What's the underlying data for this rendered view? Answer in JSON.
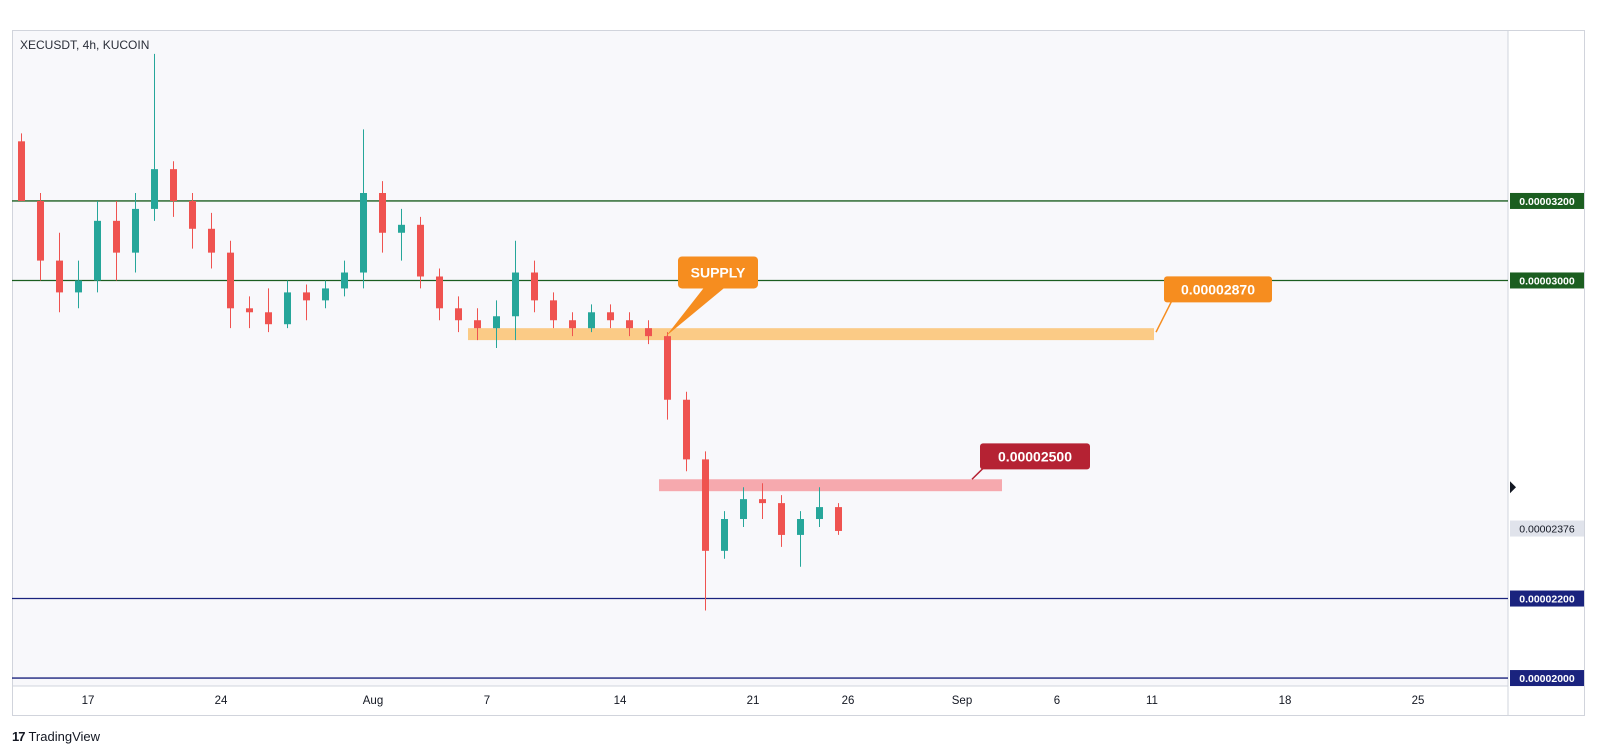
{
  "header": {
    "symbol_line": "XECUSDT, 4h, KUCOIN"
  },
  "footer": {
    "brand": "TradingView",
    "brand_mark": "17"
  },
  "colors": {
    "resistance": "#1b5e20",
    "support": "#1a237e",
    "supply_zone": "#fbc880",
    "supply_label": "#f68d1f",
    "demand_zone": "#f6a4aa",
    "demand_label": "#b52233",
    "candle_up": "#26a69a",
    "candle_down": "#ef5350"
  },
  "chart_data": {
    "type": "candlestick",
    "title": "XECUSDT, 4h, KUCOIN",
    "x_ticks": [
      "17",
      "24",
      "Aug",
      "7",
      "14",
      "21",
      "26",
      "Sep",
      "6",
      "11",
      "18",
      "25"
    ],
    "y_range": [
      1.98e-05,
      3.63e-05
    ],
    "levels": [
      {
        "value": 3.2e-05,
        "label": "0.00003200",
        "style": "resistance"
      },
      {
        "value": 3e-05,
        "label": "0.00003000",
        "style": "resistance"
      },
      {
        "value": 2.2e-05,
        "label": "0.00002200",
        "style": "support"
      },
      {
        "value": 2e-05,
        "label": "0.00002000",
        "style": "support"
      }
    ],
    "current_price": {
      "value": 2.376e-05,
      "label": "0.00002376"
    },
    "zones": [
      {
        "name": "supply",
        "from": 2.85e-05,
        "to": 2.88e-05,
        "label": "0.00002870",
        "callout": "SUPPLY"
      },
      {
        "name": "demand",
        "from": 2.47e-05,
        "to": 2.5e-05,
        "label": "0.00002500"
      }
    ],
    "candles": [
      {
        "d": "Jul 13",
        "o": 3.35e-05,
        "h": 3.37e-05,
        "l": 3.2e-05,
        "c": 3.2e-05
      },
      {
        "d": "Jul 14",
        "o": 3.2e-05,
        "h": 3.22e-05,
        "l": 3e-05,
        "c": 3.05e-05
      },
      {
        "d": "Jul 15",
        "o": 3.05e-05,
        "h": 3.12e-05,
        "l": 2.92e-05,
        "c": 2.97e-05
      },
      {
        "d": "Jul 16",
        "o": 2.97e-05,
        "h": 3.05e-05,
        "l": 2.93e-05,
        "c": 3e-05
      },
      {
        "d": "Jul 17",
        "o": 3e-05,
        "h": 3.2e-05,
        "l": 2.97e-05,
        "c": 3.15e-05
      },
      {
        "d": "Jul 18",
        "o": 3.15e-05,
        "h": 3.2e-05,
        "l": 3e-05,
        "c": 3.07e-05
      },
      {
        "d": "Jul 19",
        "o": 3.07e-05,
        "h": 3.22e-05,
        "l": 3.02e-05,
        "c": 3.18e-05
      },
      {
        "d": "Jul 20",
        "o": 3.18e-05,
        "h": 3.57e-05,
        "l": 3.15e-05,
        "c": 3.28e-05
      },
      {
        "d": "Jul 21",
        "o": 3.28e-05,
        "h": 3.3e-05,
        "l": 3.16e-05,
        "c": 3.2e-05
      },
      {
        "d": "Jul 22",
        "o": 3.2e-05,
        "h": 3.22e-05,
        "l": 3.08e-05,
        "c": 3.13e-05
      },
      {
        "d": "Jul 23",
        "o": 3.13e-05,
        "h": 3.17e-05,
        "l": 3.03e-05,
        "c": 3.07e-05
      },
      {
        "d": "Jul 24",
        "o": 3.07e-05,
        "h": 3.1e-05,
        "l": 2.88e-05,
        "c": 2.93e-05
      },
      {
        "d": "Jul 25",
        "o": 2.93e-05,
        "h": 2.96e-05,
        "l": 2.88e-05,
        "c": 2.92e-05
      },
      {
        "d": "Jul 26",
        "o": 2.92e-05,
        "h": 2.98e-05,
        "l": 2.87e-05,
        "c": 2.89e-05
      },
      {
        "d": "Jul 27",
        "o": 2.89e-05,
        "h": 3e-05,
        "l": 2.88e-05,
        "c": 2.97e-05
      },
      {
        "d": "Jul 28",
        "o": 2.97e-05,
        "h": 2.99e-05,
        "l": 2.9e-05,
        "c": 2.95e-05
      },
      {
        "d": "Jul 29",
        "o": 2.95e-05,
        "h": 3e-05,
        "l": 2.93e-05,
        "c": 2.98e-05
      },
      {
        "d": "Jul 30",
        "o": 2.98e-05,
        "h": 3.05e-05,
        "l": 2.96e-05,
        "c": 3.02e-05
      },
      {
        "d": "Jul 31",
        "o": 3.02e-05,
        "h": 3.38e-05,
        "l": 2.98e-05,
        "c": 3.22e-05
      },
      {
        "d": "Aug 1",
        "o": 3.22e-05,
        "h": 3.25e-05,
        "l": 3.07e-05,
        "c": 3.12e-05
      },
      {
        "d": "Aug 2",
        "o": 3.12e-05,
        "h": 3.18e-05,
        "l": 3.05e-05,
        "c": 3.14e-05
      },
      {
        "d": "Aug 3",
        "o": 3.14e-05,
        "h": 3.16e-05,
        "l": 2.98e-05,
        "c": 3.01e-05
      },
      {
        "d": "Aug 4",
        "o": 3.01e-05,
        "h": 3.03e-05,
        "l": 2.9e-05,
        "c": 2.93e-05
      },
      {
        "d": "Aug 5",
        "o": 2.93e-05,
        "h": 2.96e-05,
        "l": 2.87e-05,
        "c": 2.9e-05
      },
      {
        "d": "Aug 6",
        "o": 2.9e-05,
        "h": 2.93e-05,
        "l": 2.85e-05,
        "c": 2.88e-05
      },
      {
        "d": "Aug 7",
        "o": 2.88e-05,
        "h": 2.95e-05,
        "l": 2.83e-05,
        "c": 2.91e-05
      },
      {
        "d": "Aug 8",
        "o": 2.91e-05,
        "h": 3.1e-05,
        "l": 2.85e-05,
        "c": 3.02e-05
      },
      {
        "d": "Aug 9",
        "o": 3.02e-05,
        "h": 3.05e-05,
        "l": 2.92e-05,
        "c": 2.95e-05
      },
      {
        "d": "Aug 10",
        "o": 2.95e-05,
        "h": 2.97e-05,
        "l": 2.88e-05,
        "c": 2.9e-05
      },
      {
        "d": "Aug 11",
        "o": 2.9e-05,
        "h": 2.92e-05,
        "l": 2.86e-05,
        "c": 2.88e-05
      },
      {
        "d": "Aug 12",
        "o": 2.88e-05,
        "h": 2.94e-05,
        "l": 2.87e-05,
        "c": 2.92e-05
      },
      {
        "d": "Aug 13",
        "o": 2.92e-05,
        "h": 2.94e-05,
        "l": 2.88e-05,
        "c": 2.9e-05
      },
      {
        "d": "Aug 14",
        "o": 2.9e-05,
        "h": 2.92e-05,
        "l": 2.86e-05,
        "c": 2.88e-05
      },
      {
        "d": "Aug 15",
        "o": 2.88e-05,
        "h": 2.9e-05,
        "l": 2.84e-05,
        "c": 2.86e-05
      },
      {
        "d": "Aug 16",
        "o": 2.86e-05,
        "h": 2.87e-05,
        "l": 2.65e-05,
        "c": 2.7e-05
      },
      {
        "d": "Aug 17",
        "o": 2.7e-05,
        "h": 2.72e-05,
        "l": 2.52e-05,
        "c": 2.55e-05
      },
      {
        "d": "Aug 18",
        "o": 2.55e-05,
        "h": 2.57e-05,
        "l": 2.17e-05,
        "c": 2.32e-05
      },
      {
        "d": "Aug 19",
        "o": 2.32e-05,
        "h": 2.42e-05,
        "l": 2.3e-05,
        "c": 2.4e-05
      },
      {
        "d": "Aug 20",
        "o": 2.4e-05,
        "h": 2.48e-05,
        "l": 2.38e-05,
        "c": 2.45e-05
      },
      {
        "d": "Aug 21",
        "o": 2.45e-05,
        "h": 2.49e-05,
        "l": 2.4e-05,
        "c": 2.44e-05
      },
      {
        "d": "Aug 22",
        "o": 2.44e-05,
        "h": 2.46e-05,
        "l": 2.33e-05,
        "c": 2.36e-05
      },
      {
        "d": "Aug 23",
        "o": 2.36e-05,
        "h": 2.42e-05,
        "l": 2.28e-05,
        "c": 2.4e-05
      },
      {
        "d": "Aug 24",
        "o": 2.4e-05,
        "h": 2.48e-05,
        "l": 2.38e-05,
        "c": 2.43e-05
      },
      {
        "d": "Aug 25",
        "o": 2.43e-05,
        "h": 2.44e-05,
        "l": 2.36e-05,
        "c": 2.37e-05
      }
    ]
  }
}
